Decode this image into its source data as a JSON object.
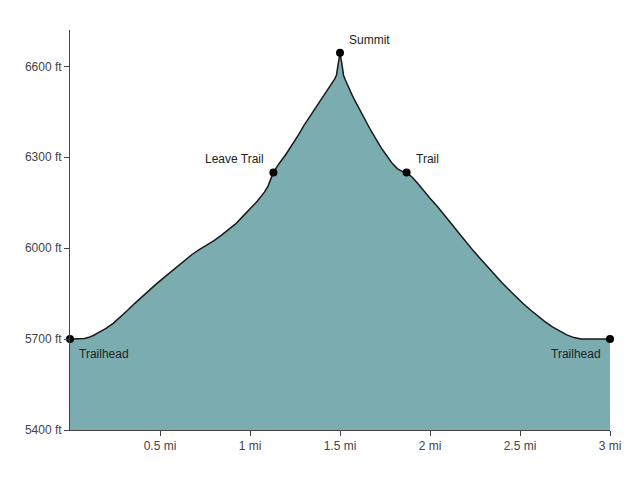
{
  "chart_data": {
    "type": "area",
    "x": [
      0.0,
      0.02,
      0.05,
      0.08,
      0.1,
      0.13,
      0.16,
      0.2,
      0.24,
      0.28,
      0.32,
      0.36,
      0.4,
      0.44,
      0.48,
      0.52,
      0.56,
      0.6,
      0.64,
      0.68,
      0.72,
      0.76,
      0.8,
      0.84,
      0.88,
      0.92,
      0.96,
      1.0,
      1.04,
      1.08,
      1.1,
      1.13,
      1.16,
      1.2,
      1.24,
      1.27,
      1.3,
      1.33,
      1.36,
      1.39,
      1.42,
      1.44,
      1.46,
      1.47,
      1.48,
      1.49,
      1.5,
      1.51,
      1.52,
      1.53,
      1.54,
      1.56,
      1.58,
      1.61,
      1.64,
      1.67,
      1.7,
      1.73,
      1.76,
      1.79,
      1.82,
      1.85,
      1.87,
      1.9,
      1.93,
      1.96,
      2.0,
      2.04,
      2.08,
      2.12,
      2.16,
      2.2,
      2.24,
      2.28,
      2.32,
      2.36,
      2.4,
      2.44,
      2.48,
      2.52,
      2.56,
      2.6,
      2.64,
      2.68,
      2.72,
      2.76,
      2.8,
      2.84,
      2.88,
      2.92,
      2.96,
      3.0
    ],
    "series": [
      {
        "type": "area",
        "color": "#7BADB0",
        "values": [
          5700,
          5700,
          5700,
          5702,
          5705,
          5712,
          5722,
          5735,
          5752,
          5772,
          5795,
          5818,
          5840,
          5862,
          5882,
          5902,
          5922,
          5942,
          5962,
          5980,
          5996,
          6010,
          6025,
          6042,
          6060,
          6080,
          6105,
          6130,
          6155,
          6185,
          6205,
          6250,
          6278,
          6310,
          6345,
          6375,
          6405,
          6432,
          6458,
          6485,
          6510,
          6528,
          6546,
          6558,
          6570,
          6610,
          6645,
          6610,
          6570,
          6555,
          6540,
          6515,
          6490,
          6455,
          6420,
          6390,
          6360,
          6330,
          6305,
          6280,
          6262,
          6252,
          6250,
          6235,
          6215,
          6192,
          6165,
          6138,
          6110,
          6080,
          6050,
          6020,
          5992,
          5965,
          5938,
          5912,
          5886,
          5862,
          5838,
          5816,
          5795,
          5775,
          5757,
          5740,
          5726,
          5714,
          5705,
          5700,
          5700,
          5700,
          5700,
          5700
        ]
      },
      {
        "type": "line",
        "color": "#1a1a1a",
        "values": [
          5700,
          5700,
          5700,
          5702,
          5705,
          5712,
          5722,
          5735,
          5752,
          5772,
          5795,
          5818,
          5840,
          5862,
          5882,
          5902,
          5922,
          5942,
          5962,
          5980,
          5996,
          6010,
          6025,
          6042,
          6060,
          6080,
          6105,
          6130,
          6155,
          6185,
          6205,
          6250,
          6278,
          6310,
          6345,
          6375,
          6405,
          6432,
          6458,
          6485,
          6510,
          6528,
          6546,
          6558,
          6570,
          6610,
          6645,
          6610,
          6570,
          6555,
          6540,
          6515,
          6490,
          6455,
          6420,
          6390,
          6360,
          6330,
          6305,
          6280,
          6262,
          6252,
          6250,
          6235,
          6215,
          6192,
          6165,
          6138,
          6110,
          6080,
          6050,
          6020,
          5992,
          5965,
          5938,
          5912,
          5886,
          5862,
          5838,
          5816,
          5795,
          5775,
          5757,
          5740,
          5726,
          5714,
          5705,
          5700,
          5700,
          5700,
          5700,
          5700
        ]
      }
    ],
    "annotations": [
      {
        "text": "Trailhead",
        "x": 0.0,
        "y": 5700,
        "marker": "circle",
        "color": "black"
      },
      {
        "text": "Leave Trail",
        "x": 1.13,
        "y": 6250,
        "marker": "circle",
        "color": "black"
      },
      {
        "text": "Summit",
        "x": 1.5,
        "y": 6645,
        "marker": "circle",
        "color": "black"
      },
      {
        "text": "Trail",
        "x": 1.87,
        "y": 6250,
        "marker": "circle",
        "color": "black"
      },
      {
        "text": "Trailhead",
        "x": 3.0,
        "y": 5700,
        "marker": "circle",
        "color": "black"
      }
    ],
    "xlim": [
      0,
      3.0
    ],
    "ylim": [
      5400,
      6720
    ],
    "xticks": [
      {
        "value": 0.5,
        "label": "0.5 mi"
      },
      {
        "value": 1.0,
        "label": "1 mi"
      },
      {
        "value": 1.5,
        "label": "1.5 mi"
      },
      {
        "value": 2.0,
        "label": "2 mi"
      },
      {
        "value": 2.5,
        "label": "2.5 mi"
      },
      {
        "value": 3.0,
        "label": "3 mi"
      }
    ],
    "yticks": [
      {
        "value": 5400,
        "label": "5400 ft"
      },
      {
        "value": 5700,
        "label": "5700 ft"
      },
      {
        "value": 6000,
        "label": "6000 ft"
      },
      {
        "value": 6300,
        "label": "6300 ft"
      },
      {
        "value": 6600,
        "label": "6600 ft"
      }
    ],
    "grid": false
  }
}
